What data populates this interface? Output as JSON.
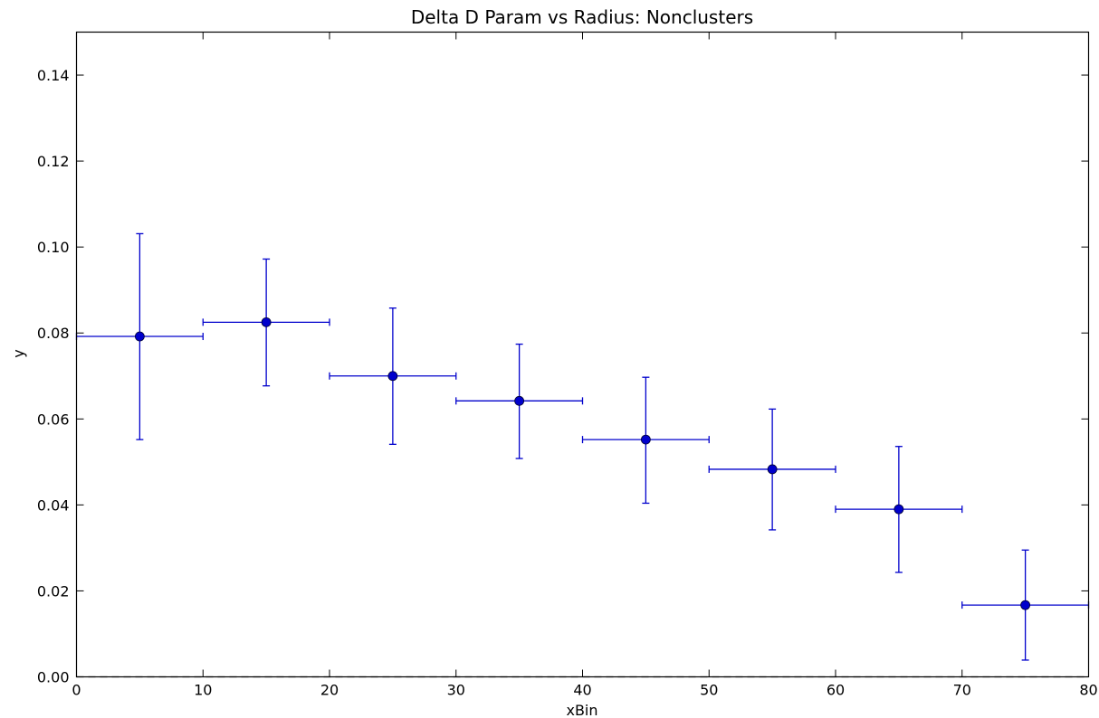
{
  "chart_data": {
    "type": "scatter",
    "title": "Delta D Param vs Radius: Nonclusters",
    "xlabel": "xBin",
    "ylabel": "y",
    "xlim": [
      0,
      80
    ],
    "ylim": [
      0,
      0.15
    ],
    "x_ticks": [
      "0",
      "10",
      "20",
      "30",
      "40",
      "50",
      "60",
      "70",
      "80"
    ],
    "y_ticks": [
      "0.00",
      "0.02",
      "0.04",
      "0.06",
      "0.08",
      "0.10",
      "0.12",
      "0.14"
    ],
    "grid": false,
    "series": [
      {
        "color": "#0000cc",
        "marker": "circle",
        "points": [
          {
            "x": 5,
            "y": 0.0792,
            "xerr": 5,
            "y_low": 0.0552,
            "y_high": 0.1031
          },
          {
            "x": 15,
            "y": 0.0825,
            "xerr": 5,
            "y_low": 0.0677,
            "y_high": 0.0972
          },
          {
            "x": 25,
            "y": 0.07,
            "xerr": 5,
            "y_low": 0.0541,
            "y_high": 0.0858
          },
          {
            "x": 35,
            "y": 0.0642,
            "xerr": 5,
            "y_low": 0.0508,
            "y_high": 0.0774
          },
          {
            "x": 45,
            "y": 0.0552,
            "xerr": 5,
            "y_low": 0.0404,
            "y_high": 0.0697
          },
          {
            "x": 55,
            "y": 0.0483,
            "xerr": 5,
            "y_low": 0.0342,
            "y_high": 0.0623
          },
          {
            "x": 65,
            "y": 0.039,
            "xerr": 5,
            "y_low": 0.0243,
            "y_high": 0.0536
          },
          {
            "x": 75,
            "y": 0.0167,
            "xerr": 5,
            "y_low": 0.0039,
            "y_high": 0.0295
          }
        ]
      }
    ],
    "reference_line": {
      "y": 0,
      "style": "dashed",
      "color": "#888888"
    }
  }
}
